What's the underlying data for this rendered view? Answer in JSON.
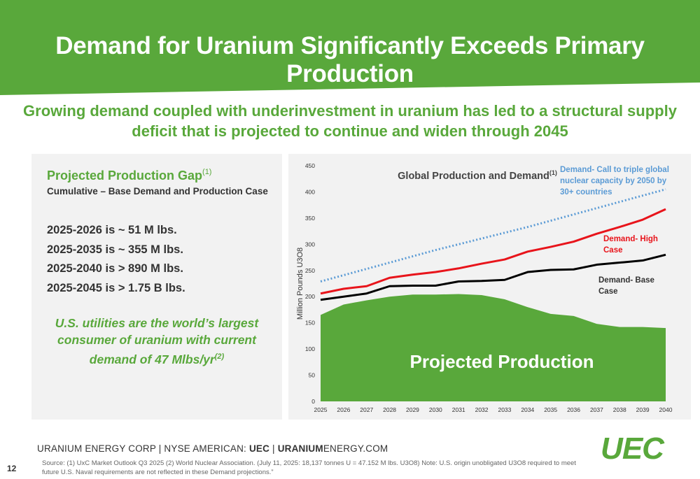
{
  "header": {
    "title": "Demand for Uranium Significantly Exceeds Primary Production",
    "color": "#59a83b"
  },
  "subtitle": {
    "line1": "Growing demand coupled with underinvestment in uranium has led to a structural supply",
    "line2": "deficit that is projected to continue and widen through 2045"
  },
  "left_panel": {
    "title": "Projected Production Gap",
    "title_sup": "(1)",
    "subtitle": "Cumulative – Base Demand and Production Case",
    "items": [
      "2025-2026 is ~ 51 M lbs.",
      "2025-2035 is ~ 355 M lbs.",
      "2025-2040 is > 890 M lbs.",
      "2025-2045 is > 1.75 B lbs."
    ],
    "note_line1": "U.S. utilities are the world’s largest",
    "note_line2": "consumer of uranium with current",
    "note_line3": "demand of 47 Mlbs/yr",
    "note_sup": "(2)"
  },
  "chart_data": {
    "type": "line",
    "title": "Global Production and Demand",
    "title_sup": "(1)",
    "ylabel": "Million Pounds U3O8",
    "xlabel": "",
    "ylim": [
      0,
      450
    ],
    "yticks": [
      0,
      50,
      100,
      150,
      200,
      250,
      300,
      350,
      400,
      450
    ],
    "x": [
      "2025",
      "2026",
      "2027",
      "2028",
      "2029",
      "2030",
      "2031",
      "2032",
      "2033",
      "2034",
      "2035",
      "2036",
      "2037",
      "2038",
      "2039",
      "2040"
    ],
    "grid": false,
    "series": [
      {
        "name": "Projected Production",
        "style": "area",
        "color": "#59a83b",
        "values": [
          165,
          185,
          193,
          200,
          204,
          204,
          205,
          203,
          195,
          180,
          167,
          163,
          148,
          142,
          142,
          140
        ]
      },
      {
        "name": "Demand- Base Case",
        "style": "line",
        "color": "#000000",
        "values": [
          194,
          200,
          206,
          220,
          221,
          221,
          229,
          230,
          232,
          247,
          251,
          252,
          261,
          265,
          269,
          280
        ]
      },
      {
        "name": "Demand- High Case",
        "style": "line",
        "color": "#e8141b",
        "values": [
          206,
          215,
          220,
          236,
          242,
          247,
          254,
          263,
          271,
          286,
          295,
          305,
          320,
          333,
          347,
          367
        ]
      },
      {
        "name": "Demand- Call to triple global nuclear capacity by 2050 by 30+ countries",
        "style": "dotted",
        "color": "#5b9bd5",
        "values": [
          229,
          241,
          253,
          265,
          277,
          289,
          300,
          311,
          322,
          333,
          345,
          357,
          369,
          381,
          393,
          405
        ]
      }
    ],
    "annotations": {
      "production": "Projected Production",
      "base_line1": "Demand- Base",
      "base_line2": "Case",
      "high_line1": "Demand- High",
      "high_line2": "Case",
      "call_line1": "Demand- Call to triple global",
      "call_line2": "nuclear capacity by 2050 by",
      "call_line3": "30+ countries"
    }
  },
  "footer": {
    "company": "URANIUM ENERGY CORP  | NYSE AMERICAN: ",
    "ticker": "UEC",
    "sep": "  | ",
    "site_bold": "URANIUM",
    "site_rest": "ENERGY.COM",
    "page_number": "12",
    "source_line1": "Source: (1) UxC Market Outlook Q3 2025 (2) World Nuclear Association. (July 11, 2025: 18,137 tonnes U = 47.152 M lbs. U3O8)  Note: U.S. origin unobligated U3O8 required to meet",
    "source_line2": "future U.S. Naval requirements are not reflected in these Demand projections.”",
    "logo_text": "UEC"
  }
}
